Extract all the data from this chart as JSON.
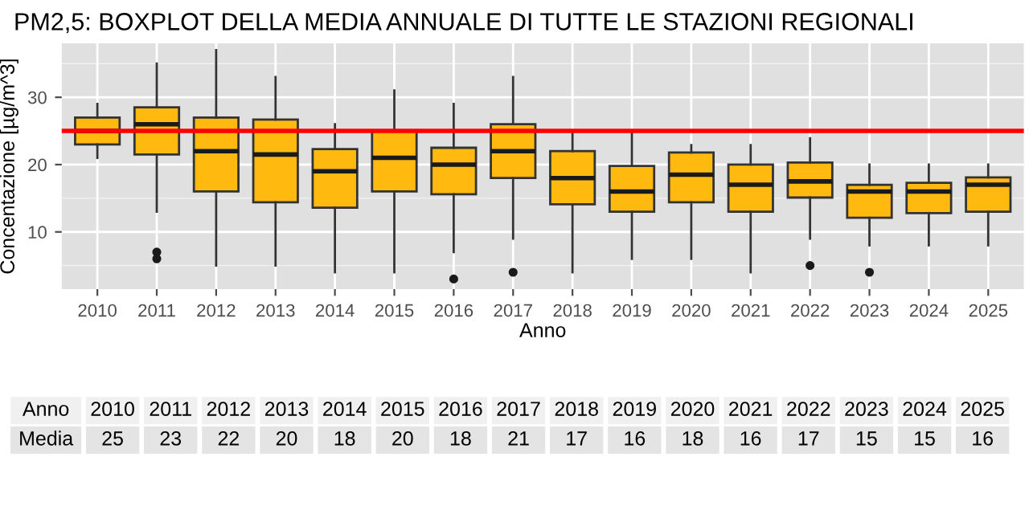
{
  "chart_data": {
    "type": "box",
    "title": "PM2,5: BOXPLOT DELLA MEDIA ANNUALE DI TUTTE LE STAZIONI REGIONALI",
    "xlabel": "Anno",
    "ylabel": "Concentazione [µg/m^3]",
    "categories": [
      "2010",
      "2011",
      "2012",
      "2013",
      "2014",
      "2015",
      "2016",
      "2017",
      "2018",
      "2019",
      "2020",
      "2021",
      "2022",
      "2023",
      "2024",
      "2025"
    ],
    "color": "#ffb90f",
    "boxes": [
      {
        "low": 21,
        "q1": 23,
        "median": 25,
        "q3": 27,
        "high": 29
      },
      {
        "low": 13,
        "q1": 21.5,
        "median": 26,
        "q3": 28.5,
        "high": 35,
        "outliers": [
          6,
          7
        ]
      },
      {
        "low": 5,
        "q1": 16,
        "median": 22,
        "q3": 27,
        "high": 37
      },
      {
        "low": 5,
        "q1": 14.4,
        "median": 21.5,
        "q3": 26.7,
        "high": 33
      },
      {
        "low": 4,
        "q1": 13.6,
        "median": 19,
        "q3": 22.3,
        "high": 26
      },
      {
        "low": 4,
        "q1": 16,
        "median": 21,
        "q3": 25,
        "high": 31
      },
      {
        "low": 7,
        "q1": 15.6,
        "median": 20,
        "q3": 22.5,
        "high": 29,
        "outliers": [
          3
        ]
      },
      {
        "low": 9,
        "q1": 18,
        "median": 22,
        "q3": 26,
        "high": 33,
        "outliers": [
          4
        ]
      },
      {
        "low": 4,
        "q1": 14.1,
        "median": 18,
        "q3": 22,
        "high": 25
      },
      {
        "low": 6,
        "q1": 13,
        "median": 16,
        "q3": 19.8,
        "high": 25
      },
      {
        "low": 6,
        "q1": 14.4,
        "median": 18.5,
        "q3": 21.8,
        "high": 22.9
      },
      {
        "low": 4,
        "q1": 13,
        "median": 17,
        "q3": 20,
        "high": 22.9
      },
      {
        "low": 9,
        "q1": 15.1,
        "median": 17.5,
        "q3": 20.3,
        "high": 23.9,
        "outliers": [
          5
        ]
      },
      {
        "low": 8,
        "q1": 12.1,
        "median": 16,
        "q3": 17,
        "high": 20,
        "outliers": [
          4
        ]
      },
      {
        "low": 8,
        "q1": 12.8,
        "median": 16,
        "q3": 17.3,
        "high": 20
      },
      {
        "low": 8,
        "q1": 13,
        "median": 17,
        "q3": 18.1,
        "high": 20
      }
    ],
    "ylim": [
      1.5,
      38
    ],
    "yticks": [
      10,
      20,
      30
    ],
    "grid": true,
    "ref_lines": [
      {
        "axis": "y",
        "value": 25,
        "color": "#ff0000"
      }
    ],
    "value_labels": [
      "25",
      "23",
      "22",
      "20",
      "18",
      "20",
      "18",
      "21",
      "17",
      "16",
      "18",
      "16",
      "17",
      "15",
      "15",
      "16"
    ],
    "annotations": [
      "Anno",
      "Media"
    ]
  }
}
